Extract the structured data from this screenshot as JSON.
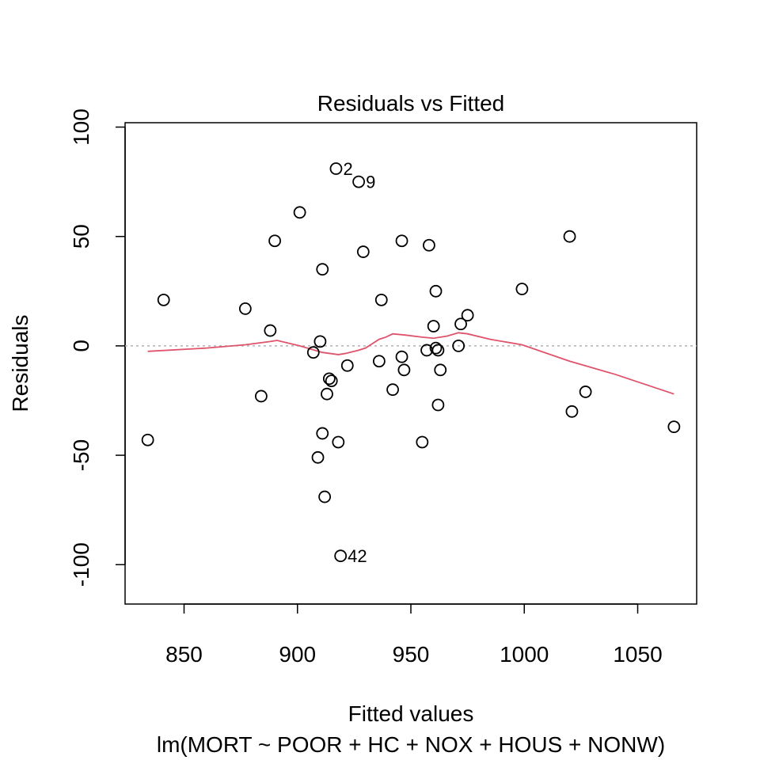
{
  "chart_data": {
    "type": "scatter",
    "title": "Residuals vs Fitted",
    "xlabel": "Fitted values",
    "subtitle": "lm(MORT ~ POOR + HC + NOX + HOUS + NONW)",
    "ylabel": "Residuals",
    "xlim": [
      824,
      1076
    ],
    "ylim": [
      -118,
      102
    ],
    "x_ticks": [
      850,
      900,
      950,
      1000,
      1050
    ],
    "y_ticks": [
      -100,
      -50,
      0,
      50,
      100
    ],
    "grid": false,
    "points": [
      {
        "x": 834,
        "y": -43
      },
      {
        "x": 841,
        "y": 21
      },
      {
        "x": 877,
        "y": 17
      },
      {
        "x": 884,
        "y": -23
      },
      {
        "x": 888,
        "y": 7
      },
      {
        "x": 890,
        "y": 48
      },
      {
        "x": 901,
        "y": 61
      },
      {
        "x": 907,
        "y": -3
      },
      {
        "x": 909,
        "y": -51
      },
      {
        "x": 910,
        "y": 2
      },
      {
        "x": 911,
        "y": 35
      },
      {
        "x": 911,
        "y": -40
      },
      {
        "x": 912,
        "y": -69
      },
      {
        "x": 913,
        "y": -22
      },
      {
        "x": 914,
        "y": -15
      },
      {
        "x": 915,
        "y": -16
      },
      {
        "x": 917,
        "y": 81,
        "label": "2"
      },
      {
        "x": 918,
        "y": -44
      },
      {
        "x": 919,
        "y": -96,
        "label": "42"
      },
      {
        "x": 922,
        "y": -9
      },
      {
        "x": 927,
        "y": 75,
        "label": "9"
      },
      {
        "x": 929,
        "y": 43
      },
      {
        "x": 936,
        "y": -7
      },
      {
        "x": 937,
        "y": 21
      },
      {
        "x": 942,
        "y": -20
      },
      {
        "x": 946,
        "y": -5
      },
      {
        "x": 946,
        "y": 48
      },
      {
        "x": 947,
        "y": -11
      },
      {
        "x": 955,
        "y": -44
      },
      {
        "x": 957,
        "y": -2
      },
      {
        "x": 958,
        "y": 46
      },
      {
        "x": 960,
        "y": 9
      },
      {
        "x": 961,
        "y": 25
      },
      {
        "x": 961,
        "y": -1
      },
      {
        "x": 962,
        "y": -2
      },
      {
        "x": 962,
        "y": -27
      },
      {
        "x": 963,
        "y": -11
      },
      {
        "x": 971,
        "y": 0
      },
      {
        "x": 972,
        "y": 10
      },
      {
        "x": 975,
        "y": 14
      },
      {
        "x": 999,
        "y": 26
      },
      {
        "x": 1020,
        "y": 50
      },
      {
        "x": 1021,
        "y": -30
      },
      {
        "x": 1027,
        "y": -21
      },
      {
        "x": 1066,
        "y": -37
      }
    ],
    "smoother": {
      "color": "#DF536B",
      "x": [
        834,
        860,
        877,
        888,
        891,
        901,
        911,
        918,
        921,
        927,
        930,
        933,
        936,
        939,
        942,
        947,
        955,
        960,
        966,
        971,
        975,
        985,
        999,
        1020,
        1040,
        1066
      ],
      "y": [
        -2.5,
        -1,
        0.5,
        2,
        2.5,
        0,
        -3,
        -4,
        -3.5,
        -2,
        -1,
        1,
        3,
        4,
        5.5,
        5,
        4,
        3.5,
        4.5,
        6,
        5.5,
        3,
        0.5,
        -7,
        -13,
        -22
      ]
    },
    "zero_line": {
      "y": 0,
      "color": "#b0b0b8",
      "style": "dotted"
    }
  }
}
